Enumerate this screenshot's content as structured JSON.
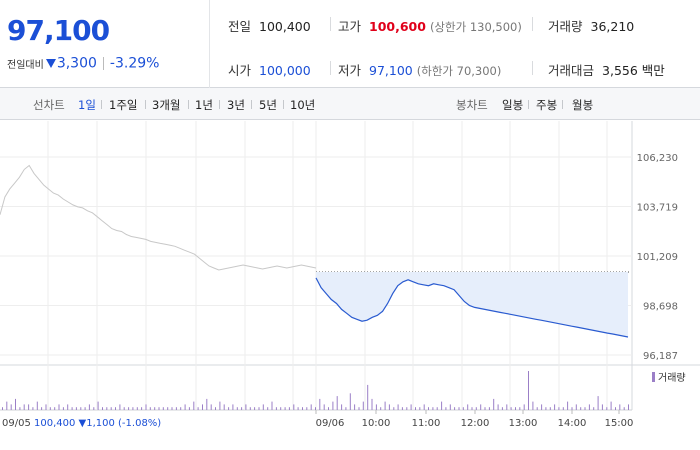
{
  "quote": {
    "price": "97,100",
    "change_label": "전일대비",
    "change_amount": "3,300",
    "change_percent": "-3.29%"
  },
  "stats": {
    "prev_close_label": "전일",
    "prev_close": "100,400",
    "high_label": "고가",
    "high": "100,600",
    "upper_limit": "(상한가 130,500)",
    "volume_label": "거래량",
    "volume": "36,210",
    "open_label": "시가",
    "open": "100,000",
    "low_label": "저가",
    "low": "97,100",
    "lower_limit": "(하한가 70,300)",
    "amount_label": "거래대금",
    "amount": "3,556 백만"
  },
  "tabs": {
    "line_label": "선차트",
    "line_periods": [
      "1일",
      "1주일",
      "3개월",
      "1년",
      "3년",
      "5년",
      "10년"
    ],
    "selected": "1일",
    "candle_label": "봉차트",
    "candle_periods": [
      "일봉",
      "주봉",
      "월봉"
    ]
  },
  "colors": {
    "accent_blue": "#1b4fd6",
    "up_red": "#e0001a",
    "prev_day_line": "#c8c8c8",
    "today_line": "#2a5bd0",
    "today_fill": "#e6eefb",
    "volume_bar": "#9b7fc7"
  },
  "chart_data": {
    "type": "line",
    "y_ticks": [
      "106,230",
      "103,719",
      "101,209",
      "98,698",
      "96,187"
    ],
    "ylim": [
      96187,
      106230
    ],
    "x_ticks": [
      "09/06",
      "10:00",
      "11:00",
      "12:00",
      "13:00",
      "14:00",
      "15:00"
    ],
    "reference_line": 100400,
    "volume_legend": "거래량",
    "prev_day_info": {
      "date": "09/05",
      "close": "100,400",
      "change": "▼1,100",
      "change_pct": "(-1.08%)"
    },
    "series": [
      {
        "values": [
          103300,
          104200,
          104600,
          104900,
          105200,
          105600,
          105800,
          105400,
          105100,
          104800,
          104600,
          104400,
          104300,
          104100,
          103950,
          103800,
          103700,
          103650,
          103500,
          103400,
          103200,
          103000,
          102800,
          102600,
          102500,
          102450,
          102300,
          102200,
          102150,
          102100,
          102050,
          101950,
          101900,
          101850,
          101800,
          101750,
          101700,
          101600,
          101500,
          101400,
          101300,
          101100,
          100900,
          100700,
          100600,
          100500,
          100550,
          100600,
          100650,
          100700,
          100750,
          100700,
          100650,
          100600,
          100550,
          100600,
          100650,
          100700,
          100650,
          100600,
          100650,
          100700,
          100750,
          100700,
          100650,
          100600
        ]
      },
      {
        "values": [
          100100,
          99600,
          99300,
          99000,
          98800,
          98500,
          98300,
          98100,
          98000,
          97900,
          97950,
          98100,
          98200,
          98400,
          98800,
          99300,
          99700,
          99900,
          100000,
          99900,
          99800,
          99750,
          99700,
          99800,
          99750,
          99700,
          99600,
          99500,
          99200,
          98900,
          98700,
          98600,
          98550,
          98500,
          98450,
          98400,
          98350,
          98300,
          98250,
          98200,
          98150,
          98100,
          98050,
          98000,
          97950,
          97900,
          97850,
          97800,
          97750,
          97700,
          97650,
          97600,
          97550,
          97500,
          97450,
          97400,
          97350,
          97300,
          97250,
          97200,
          97150,
          97100
        ]
      }
    ],
    "volume": [
      1,
      3,
      2,
      4,
      1,
      2,
      2,
      1,
      3,
      1,
      2,
      1,
      1,
      2,
      1,
      2,
      1,
      1,
      1,
      1,
      2,
      1,
      3,
      1,
      1,
      1,
      1,
      2,
      1,
      1,
      1,
      1,
      1,
      2,
      1,
      1,
      1,
      1,
      1,
      1,
      1,
      1,
      2,
      1,
      3,
      1,
      2,
      4,
      2,
      1,
      3,
      2,
      1,
      2,
      1,
      1,
      2,
      1,
      1,
      1,
      2,
      1,
      3,
      1,
      1,
      1,
      1,
      2,
      1,
      1,
      1,
      2,
      1,
      4,
      2,
      1,
      3,
      5,
      2,
      1,
      6,
      2,
      1,
      3,
      9,
      4,
      2,
      1,
      3,
      2,
      1,
      2,
      1,
      1,
      2,
      1,
      1,
      2,
      1,
      1,
      1,
      3,
      1,
      2,
      1,
      1,
      1,
      2,
      1,
      1,
      2,
      1,
      1,
      4,
      2,
      1,
      2,
      1,
      1,
      1,
      2,
      14,
      3,
      1,
      2,
      1,
      1,
      2,
      1,
      1,
      3,
      1,
      2,
      1,
      1,
      2,
      1,
      5,
      2,
      1,
      3,
      1,
      2,
      1,
      2
    ]
  }
}
